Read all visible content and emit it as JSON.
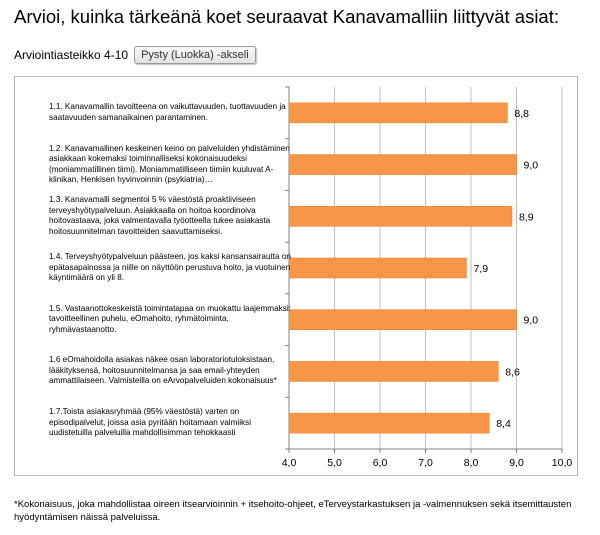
{
  "title": "Arvioi, kuinka tärkeänä koet seuraavat Kanavamalliin liittyvät asiat:",
  "subtitle": "Arviointiasteikko 4-10",
  "axis_button_label": "Pysty (Luokka)  -akseli",
  "footnote": "*Kokonaisuus, joka mahdollistaa oireen itsearvioinnin + itsehoito-ohjeet, eTerveystarkastuksen ja -valmennuksen sekä itsemittausten hyödyntämisen näissä palveluissa.",
  "colors": {
    "bar": "#f79646",
    "bar_stroke": "#e07a28",
    "grid": "#bfbfbf",
    "axis": "#808080"
  },
  "chart_data": {
    "type": "bar",
    "orientation": "horizontal",
    "categories": [
      "1.1. Kanavamallin tavoitteena on vaikuttavuuden, tuottavuuden ja saatavuuden samanaikainen parantaminen.",
      "1.2. Kanavamallinen keskeinen keino on palveluiden yhdistäminen asiakkaan kokemaksi toiminnalliseksi kokonaisuudeksi (moniammatillinen tiimi). Moniammatilliseen tiimiin kuuluvat A-klinikan, Henkisen hyvinvoinnin (psykiatria)…",
      "1.3. Kanavamalli segmentoi 5 % väestöstä proaktiiviseen terveyshyötypalveluun. Asiakkaalla on hoitoa koordinoiva hoitovastaava, joka valmentavalla työotteella tukee asiakasta hoitosuunnitelman tavoitteiden saavuttamiseksi.",
      "1.4. Terveyshyötypalveluun päästeen, jos kaksi kansansairautta on epätasapainossa ja niille on näyttöön perustuva hoito, ja vuotuinen käyntimäärä on yli 8.",
      "1.5. Vastaanottokeskeistä toimintatapaa on muokattu laajemmaksi: tavoitteellinen puhelu, eOmahoito, ryhmätoiminta, ryhmävastaanotto.",
      "1.6 eOmahoidolla asiakas näkee osan laboratoriotuloksistaan, lääkityksensä, hoitosuunnitelmansa ja saa email-yhteyden ammattilaiseen. Valmisteilla on eArvopalveluiden kokonaisuus*",
      "1.7.Toista asiakasryhmää (95% väestöstä) varten on episodipalvelut, joissa asia pyritään hoitamaan valmiiksi uudistetuilla palveluilla mahdollisimman tehokkaasti"
    ],
    "values": [
      8.8,
      9.0,
      8.9,
      7.9,
      9.0,
      8.6,
      8.4
    ],
    "value_labels": [
      "8,8",
      "9,0",
      "8,9",
      "7,9",
      "9,0",
      "8,6",
      "8,4"
    ],
    "xlim": [
      4.0,
      10.0
    ],
    "x_ticks": [
      "4,0",
      "5,0",
      "6,0",
      "7,0",
      "8,0",
      "9,0",
      "10,0"
    ],
    "gridlines": true,
    "legend": "none"
  }
}
